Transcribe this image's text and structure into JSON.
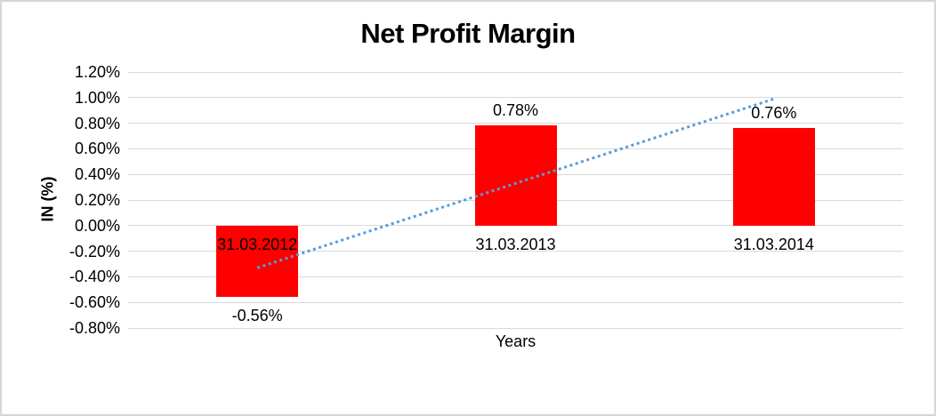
{
  "chart_data": {
    "type": "bar",
    "title": "Net Profit Margin",
    "xlabel": "Years",
    "ylabel": "IN (%)",
    "categories": [
      "31.03.2012",
      "31.03.2013",
      "31.03.2014"
    ],
    "series": [
      {
        "name": "Net Profit Margin",
        "values": [
          -0.56,
          0.78,
          0.76
        ]
      }
    ],
    "values": [
      -0.56,
      0.78,
      0.76
    ],
    "value_labels": [
      "-0.56%",
      "0.78%",
      "0.76%"
    ],
    "ylim": [
      -0.8,
      1.2
    ],
    "ytick_values": [
      1.2,
      1.0,
      0.8,
      0.6,
      0.4,
      0.2,
      0.0,
      -0.2,
      -0.4,
      -0.6,
      -0.8
    ],
    "ytick_labels": [
      "1.20%",
      "1.00%",
      "0.80%",
      "0.60%",
      "0.40%",
      "0.20%",
      "0.00%",
      "-0.20%",
      "-0.40%",
      "-0.60%",
      "-0.80%"
    ],
    "grid": true,
    "legend": "none",
    "trendline": {
      "type": "linear",
      "style": "dotted",
      "start_value": -0.33,
      "end_value": 0.99
    },
    "colors": {
      "bar": "#ff0000",
      "trendline": "#5b9bd5",
      "gridline": "#d9d9d9",
      "text": "#000000",
      "frame_border": "#d6d6d6",
      "background": "#ffffff"
    }
  }
}
